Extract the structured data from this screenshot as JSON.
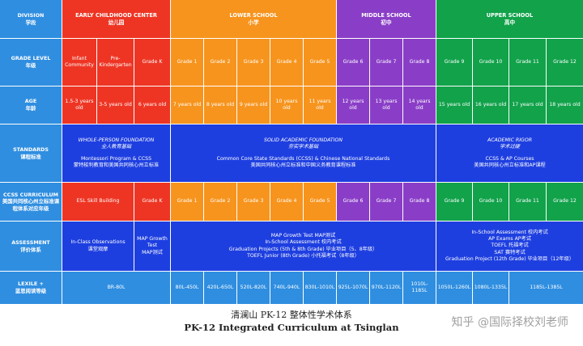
{
  "row_headers": [
    {
      "en": "DIVISION",
      "zh": "学段"
    },
    {
      "en": "GRADE LEVEL",
      "zh": "年级"
    },
    {
      "en": "AGE",
      "zh": "年龄"
    },
    {
      "en": "STANDARDS",
      "zh": "课程标准"
    },
    {
      "en": "CCSS CURRICULUM",
      "zh": "美国共同核心州立标准课程体系对应年级"
    },
    {
      "en": "ASSESSMENT",
      "zh": "评价体系"
    },
    {
      "en": "LEXILE +",
      "zh": "蓝思阅读等级"
    }
  ],
  "divisions": [
    {
      "en": "EARLY CHILDHOOD CENTER",
      "zh": "幼儿园"
    },
    {
      "en": "LOWER SCHOOL",
      "zh": "小学"
    },
    {
      "en": "MIDDLE SCHOOL",
      "zh": "初中"
    },
    {
      "en": "UPPER SCHOOL",
      "zh": "高中"
    }
  ],
  "grades": [
    "Infant Community",
    "Pre-Kindergarten",
    "Grade K",
    "Grade 1",
    "Grade 2",
    "Grade 3",
    "Grade 4",
    "Grade 5",
    "Grade 6",
    "Grade 7",
    "Grade 8",
    "Grade 9",
    "Grade 10",
    "Grade 11",
    "Grade 12"
  ],
  "ages": [
    "1.5-3 years old",
    "3-5 years old",
    "6 years old",
    "7 years old",
    "8 years old",
    "9 years old",
    "10 years old",
    "11 years old",
    "12 years old",
    "13 years old",
    "14 years old",
    "15 years old",
    "16 years old",
    "17 years old",
    "18 years old"
  ],
  "standards": [
    {
      "title": "WHOLE-PERSON FOUNDATION",
      "title_zh": "全人教育基础",
      "line": "Montessori Program & CCSS",
      "line_zh": "蒙特梭利教育和美国共同核心州立标准"
    },
    {
      "title": "SOLID ACADEMIC FOUNDATION",
      "title_zh": "夯实学术基础",
      "line": "Common Core State Standards (CCSS) & Chinese National Standards",
      "line_zh": "美国共同核心州立标准和中国义务教育课程标准"
    },
    {
      "title": "ACADEMIC RIGOR",
      "title_zh": "学术过硬",
      "line": "CCSS & AP Courses",
      "line_zh": "美国共同核心州立标准和AP课程"
    }
  ],
  "ccss": [
    "ESL Skill Building",
    "Grade K",
    "Grade 1",
    "Grade 2",
    "Grade 3",
    "Grade 4",
    "Grade 5",
    "Grade 6",
    "Grade 7",
    "Grade 8",
    "Grade 9",
    "Grade 10",
    "Grade 11",
    "Grade 12"
  ],
  "assessment": {
    "early": [
      "In-Class Observations",
      "课堂观摩"
    ],
    "gradek": [
      "MAP Growth",
      "Test",
      "MAP测试"
    ],
    "lower_middle": [
      "MAP Growth Test MAP测试",
      "In-School Assessment 校内考试",
      "Graduation Projects (5th & 8th Grade) 毕业项目（5、8年级）",
      "TOEFL Junior (8th Grade) 小托福考试（8年级）"
    ],
    "upper": [
      "In-School Assessment 校内考试",
      "AP Exams AP考试",
      "TOEFL 托福考试",
      "SAT 赛特考试",
      "Graduation Project (12th Grade) 毕业项目（12年级）"
    ]
  },
  "lexile": [
    "BR-80L",
    "80L-450L",
    "420L-650L",
    "520L-820L",
    "740L-940L",
    "830L-1010L",
    "925L-1070L",
    "970L-1120L",
    "1010L-1185L",
    "1050L-1260L",
    "1080L-1335L",
    "1185L-1385L"
  ],
  "caption_zh": "清澜山 PK-12 整体性学术体系",
  "caption_en": "PK-12 Integrated Curriculum at Tsinglan",
  "watermark": "知乎 @国际择校刘老师"
}
